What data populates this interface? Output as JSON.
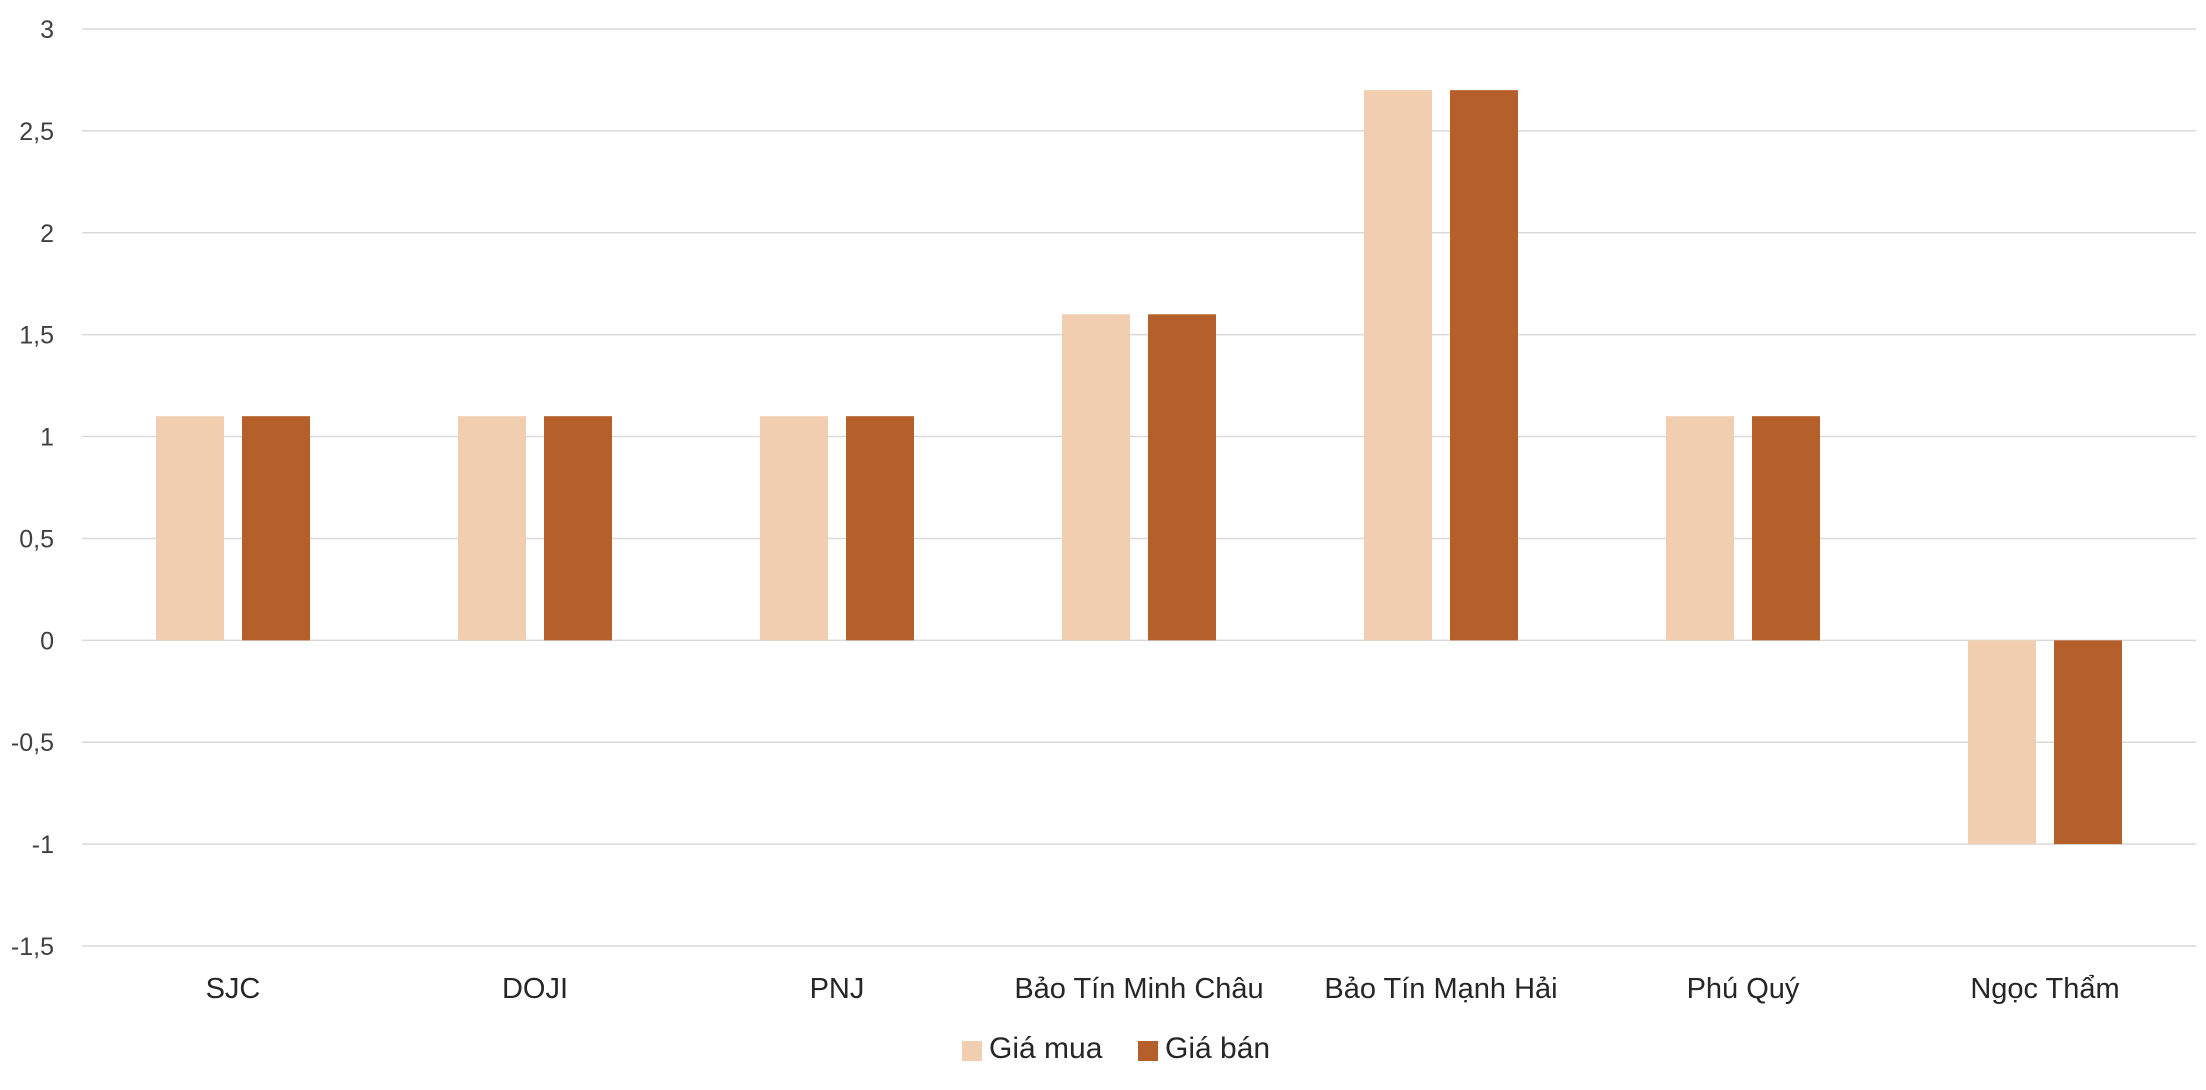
{
  "chart_data": {
    "type": "bar",
    "categories": [
      "SJC",
      "DOJI",
      "PNJ",
      "Bảo Tín Minh Châu",
      "Bảo Tín Mạnh Hải",
      "Phú Quý",
      "Ngọc Thẩm"
    ],
    "series": [
      {
        "name": "Giá mua",
        "values": [
          1.1,
          1.1,
          1.1,
          1.6,
          2.7,
          1.1,
          -1.0
        ],
        "color": "#f2ceb1"
      },
      {
        "name": "Giá bán",
        "values": [
          1.1,
          1.1,
          1.1,
          1.6,
          2.7,
          1.1,
          -1.0
        ],
        "color": "#b5602b"
      }
    ],
    "title": "",
    "xlabel": "",
    "ylabel": "",
    "ylim": [
      -1.5,
      3
    ],
    "yticks": [
      {
        "value": 3,
        "label": "3"
      },
      {
        "value": 2.5,
        "label": "2,5"
      },
      {
        "value": 2,
        "label": "2"
      },
      {
        "value": 1.5,
        "label": "1,5"
      },
      {
        "value": 1,
        "label": "1"
      },
      {
        "value": 0.5,
        "label": "0,5"
      },
      {
        "value": 0,
        "label": "0"
      },
      {
        "value": -0.5,
        "label": "-0,5"
      },
      {
        "value": -1,
        "label": "-1"
      },
      {
        "value": -1.5,
        "label": "-1,5"
      }
    ],
    "grid": true,
    "legend": "bottom"
  }
}
